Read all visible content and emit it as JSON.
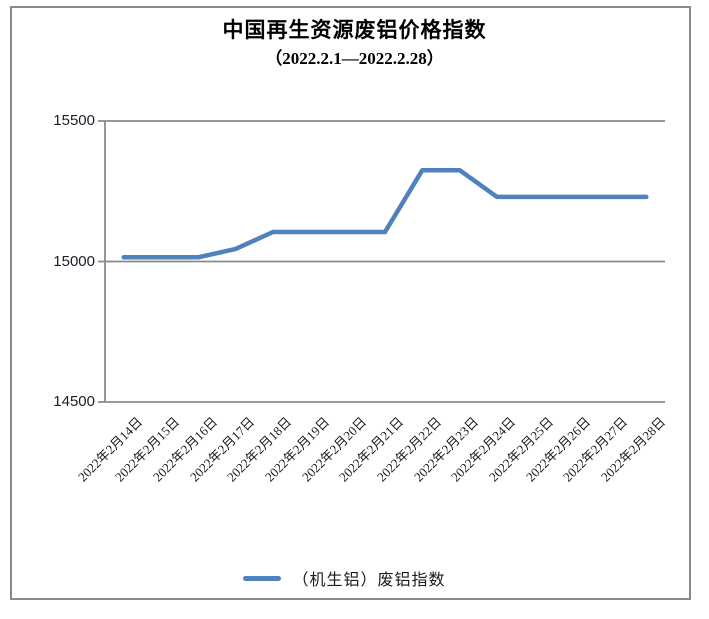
{
  "page": {
    "background": "#ffffff",
    "border_color": "#8a8a8a"
  },
  "chart_data": {
    "type": "line",
    "title": "中国再生资源废铝价格指数",
    "subtitle": "（2022.2.1—2022.2.28）",
    "categories": [
      "2022年2月14日",
      "2022年2月15日",
      "2022年2月16日",
      "2022年2月17日",
      "2022年2月18日",
      "2022年2月19日",
      "2022年2月20日",
      "2022年2月21日",
      "2022年2月22日",
      "2022年2月23日",
      "2022年2月24日",
      "2022年2月25日",
      "2022年2月26日",
      "2022年2月27日",
      "2022年2月28日"
    ],
    "series": [
      {
        "name": "（机生铝）废铝指数",
        "color": "#4F81BD",
        "values": [
          15015,
          15015,
          15015,
          15045,
          15105,
          15105,
          15105,
          15105,
          15325,
          15325,
          15230,
          15230,
          15230,
          15230,
          15230
        ]
      }
    ],
    "xlabel": "",
    "ylabel": "",
    "ylim": [
      14500,
      15500
    ],
    "yticks": [
      14500,
      15000,
      15500
    ],
    "grid": "horizontal",
    "axis_color": "#8a8a8a",
    "text_color": "#1a1a1a",
    "legend_position": "bottom"
  }
}
